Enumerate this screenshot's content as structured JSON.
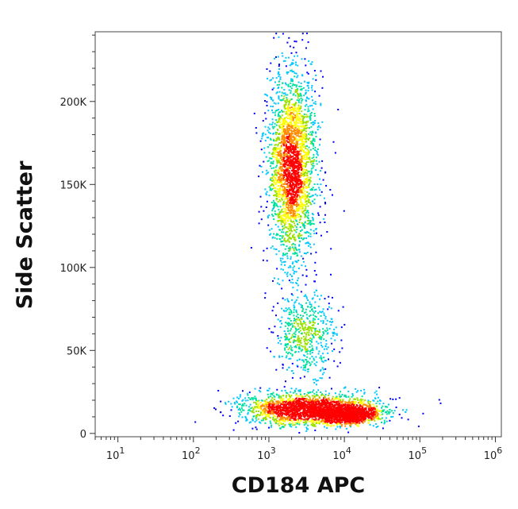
{
  "chart_data": {
    "type": "scatter",
    "style": "density dot plot",
    "xlabel": "CD184 APC",
    "ylabel": "Side Scatter",
    "x_scale": "log",
    "xlim": [
      5,
      1200000
    ],
    "ylim": [
      -2000,
      242000
    ],
    "x_ticks": [
      {
        "value": 10,
        "base": "10",
        "exp": "1"
      },
      {
        "value": 100,
        "base": "10",
        "exp": "2"
      },
      {
        "value": 1000,
        "base": "10",
        "exp": "3"
      },
      {
        "value": 10000,
        "base": "10",
        "exp": "4"
      },
      {
        "value": 100000,
        "base": "10",
        "exp": "5"
      },
      {
        "value": 1000000,
        "base": "10",
        "exp": "6"
      }
    ],
    "y_ticks": [
      {
        "value": 0,
        "label": "0"
      },
      {
        "value": 50000,
        "label": "50K"
      },
      {
        "value": 100000,
        "label": "100K"
      },
      {
        "value": 150000,
        "label": "150K"
      },
      {
        "value": 200000,
        "label": "200K"
      }
    ],
    "populations": [
      {
        "center_x": 2000,
        "center_y": 160000,
        "spread_log10_x": 0.16,
        "spread_y": 28000,
        "count": 2600
      },
      {
        "center_x": 3000,
        "center_y": 60000,
        "spread_log10_x": 0.2,
        "spread_y": 12000,
        "count": 550
      },
      {
        "center_x": 3500,
        "center_y": 15000,
        "spread_log10_x": 0.45,
        "spread_y": 4500,
        "count": 2100
      },
      {
        "center_x": 11000,
        "center_y": 11500,
        "spread_log10_x": 0.2,
        "spread_y": 2500,
        "count": 900
      }
    ],
    "grid": false,
    "legend": "none",
    "colormap": [
      "#0000ff",
      "#00c8ff",
      "#00e0a0",
      "#9be000",
      "#ffff00",
      "#ff8c00",
      "#ff0000"
    ]
  }
}
